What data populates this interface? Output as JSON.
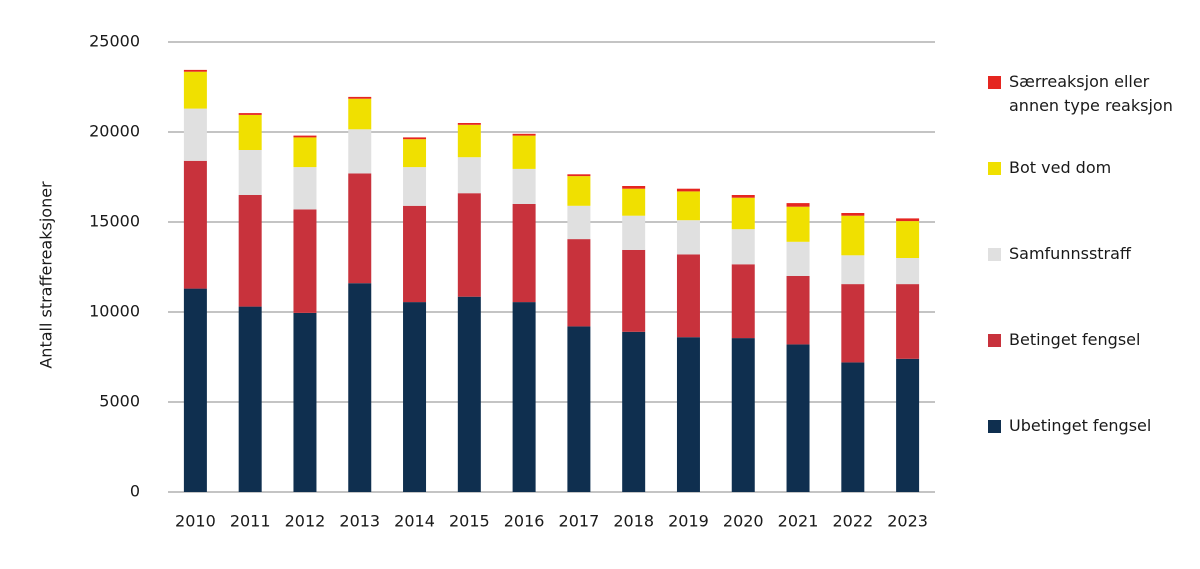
{
  "chart_data": {
    "type": "stacked_bar",
    "y_label": "Antall straffereaksjoner",
    "categories": [
      "2010",
      "2011",
      "2012",
      "2013",
      "2014",
      "2015",
      "2016",
      "2017",
      "2018",
      "2019",
      "2020",
      "2021",
      "2022",
      "2023"
    ],
    "series": [
      {
        "name": "Ubetinget fengsel",
        "color": "#0f2f4f",
        "values": [
          11300,
          10300,
          9950,
          11600,
          10550,
          10850,
          10550,
          9200,
          8900,
          8600,
          8550,
          8200,
          7200,
          7400
        ]
      },
      {
        "name": "Betinget fengsel",
        "color": "#c8323c",
        "values": [
          7100,
          6200,
          5750,
          6100,
          5350,
          5750,
          5450,
          4850,
          4550,
          4600,
          4100,
          3800,
          4350,
          4150
        ]
      },
      {
        "name": "Samfunnsstraff",
        "color": "#e0e0e0",
        "values": [
          2900,
          2500,
          2350,
          2450,
          2150,
          2000,
          1950,
          1850,
          1900,
          1900,
          1950,
          1900,
          1600,
          1450
        ]
      },
      {
        "name": "Bot ved dom",
        "color": "#f0e000",
        "values": [
          2050,
          1950,
          1650,
          1700,
          1550,
          1800,
          1850,
          1650,
          1500,
          1600,
          1750,
          1950,
          2200,
          2050
        ]
      },
      {
        "name": "Særreaksjon eller annen type reaksjon",
        "color": "#e52620",
        "values": [
          100,
          100,
          100,
          100,
          100,
          100,
          100,
          100,
          150,
          150,
          150,
          200,
          150,
          150
        ]
      }
    ],
    "ylim": [
      0,
      25000
    ],
    "yticks": [
      0,
      5000,
      10000,
      15000,
      20000,
      25000
    ],
    "grid": true
  }
}
